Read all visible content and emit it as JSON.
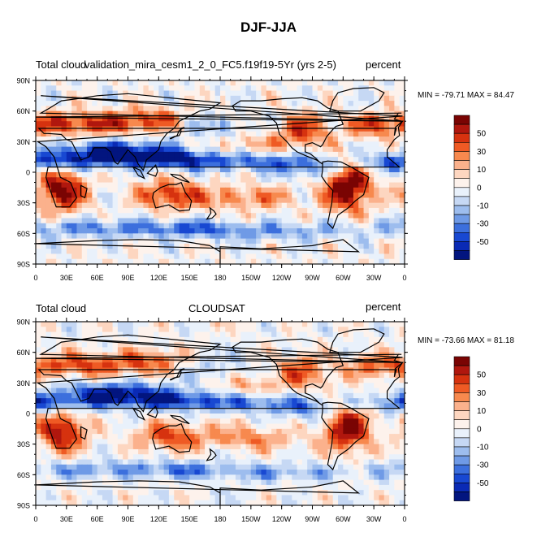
{
  "title": "DJF-JJA",
  "lat_labels": [
    "90N",
    "60N",
    "30N",
    "0",
    "30S",
    "60S",
    "90S"
  ],
  "lon_labels": [
    "0",
    "30E",
    "60E",
    "90E",
    "120E",
    "150E",
    "180",
    "150W",
    "120W",
    "90W",
    "60W",
    "30W",
    "0"
  ],
  "colorbar_labels": [
    "50",
    "30",
    "10",
    "0",
    "-10",
    "-30",
    "-50"
  ],
  "colorbar_colors": [
    "#7a0403",
    "#b0170e",
    "#d6320f",
    "#ef5a24",
    "#f7894e",
    "#fbb18c",
    "#fdd6c0",
    "#fdf2ec",
    "#e9f1fb",
    "#c6d8f4",
    "#9dbdee",
    "#6f9ae6",
    "#3c6fdd",
    "#1848d2",
    "#0a2ab5",
    "#02157f"
  ],
  "panels": [
    {
      "left_label": "Total cloud",
      "center_label": "validation_mira_cesm1_2_0_FC5.f19f19-5Yr (yrs 2-5)",
      "right_label": "percent",
      "min_max": "MIN = -79.71 MAX =  84.47"
    },
    {
      "left_label": "Total cloud",
      "center_label": "CLOUDSAT",
      "right_label": "percent",
      "min_max": "MIN = -73.66 MAX =  81.18"
    }
  ]
}
